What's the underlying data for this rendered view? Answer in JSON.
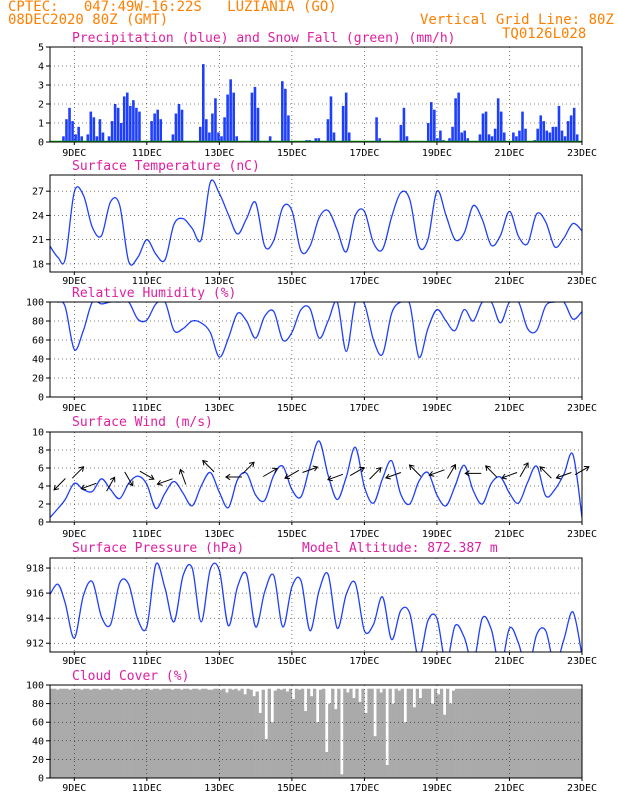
{
  "header": {
    "line1": "CPTEC:   047:49W-16:22S   LUZIANIA (GO)",
    "line2": "08DEC2020 80Z (GMT)",
    "grid_note": "Vertical Grid Line: 80Z",
    "code": "TQ0126L028"
  },
  "x_labels": [
    "9DEC",
    "11DEC",
    "13DEC",
    "15DEC",
    "17DEC",
    "19DEC",
    "21DEC",
    "23DEC"
  ],
  "colors": {
    "header": "#ff7f00",
    "title": "#e01fa0",
    "series": "#1f3fff",
    "snow": "#00aa00",
    "cloud": "#aaaaaa",
    "frame": "#000000"
  },
  "chart_data": [
    {
      "type": "bar",
      "title": "Precipitation (blue) and Snow Fall (green) (mm/h)",
      "ylim": [
        0,
        5
      ],
      "yticks": [
        0,
        1,
        2,
        3,
        4,
        5
      ],
      "x_start": 8.33,
      "x_end": 23.0,
      "values": [
        0,
        0,
        0,
        0,
        0.3,
        1.2,
        1.8,
        1.1,
        0.4,
        0.8,
        0.3,
        0,
        0.4,
        1.6,
        1.3,
        0.3,
        1.2,
        0.5,
        0,
        0.3,
        1.1,
        2.0,
        1.8,
        1.0,
        2.4,
        2.6,
        1.9,
        2.2,
        1.8,
        1.6,
        0,
        0,
        0,
        1.1,
        1.5,
        1.7,
        1.2,
        0,
        0,
        0,
        0.4,
        1.5,
        2.0,
        1.7,
        0,
        0,
        0,
        0,
        0,
        0.8,
        4.1,
        1.2,
        0.5,
        1.5,
        2.3,
        0.5,
        0.3,
        1.3,
        2.5,
        3.3,
        2.6,
        0.3,
        0,
        0,
        0,
        0,
        2.6,
        2.9,
        1.8,
        0,
        0,
        0,
        0.3,
        0,
        0,
        0,
        3.2,
        2.8,
        1.4,
        0,
        0,
        0,
        0,
        0,
        0.1,
        0.1,
        0,
        0.2,
        0.2,
        0,
        0,
        1.2,
        2.4,
        0.5,
        0,
        0,
        1.9,
        2.6,
        0.5,
        0,
        0,
        0,
        0,
        0,
        0,
        0,
        0,
        1.3,
        0.2,
        0,
        0,
        0,
        0,
        0,
        0,
        0.9,
        1.8,
        0.3,
        0,
        0,
        0,
        0,
        0,
        0,
        1.0,
        2.1,
        1.7,
        0.2,
        0.6,
        0.1,
        0,
        0.2,
        0.8,
        2.3,
        2.6,
        0.5,
        0.6,
        0.2,
        0,
        0,
        0,
        0.4,
        1.5,
        1.6,
        0.4,
        0.3,
        0.7,
        2.3,
        1.6,
        0.5,
        0,
        0,
        0.5,
        0.3,
        0.6,
        1.6,
        0.7,
        0,
        0,
        0.1,
        0.7,
        1.4,
        1.1,
        0.6,
        0.5,
        0.8,
        0.8,
        1.9,
        0.6,
        0.3,
        1.1,
        1.4,
        1.8,
        0.4,
        0
      ],
      "snow_values": [
        0
      ]
    },
    {
      "type": "line",
      "title": "Surface Temperature (nC)",
      "ylim": [
        17,
        29
      ],
      "yticks": [
        18,
        21,
        24,
        27
      ],
      "x": [
        8.33,
        8.55,
        8.75,
        9.0,
        9.25,
        9.5,
        9.75,
        10.0,
        10.25,
        10.5,
        10.75,
        11.0,
        11.25,
        11.5,
        11.75,
        12.0,
        12.25,
        12.5,
        12.75,
        13.0,
        13.25,
        13.5,
        13.75,
        14.0,
        14.25,
        14.5,
        14.75,
        15.0,
        15.25,
        15.5,
        15.75,
        16.0,
        16.25,
        16.5,
        16.75,
        17.0,
        17.25,
        17.5,
        17.75,
        18.0,
        18.25,
        18.5,
        18.75,
        19.0,
        19.25,
        19.5,
        19.75,
        20.0,
        20.25,
        20.5,
        20.75,
        21.0,
        21.25,
        21.5,
        21.75,
        22.0,
        22.25,
        22.5,
        22.75,
        23.0
      ],
      "y": [
        20.2,
        18.8,
        18.6,
        26.9,
        26.5,
        22.5,
        21.5,
        25.7,
        25.3,
        18.3,
        18.8,
        21.0,
        19.2,
        18.5,
        22.9,
        23.6,
        22.4,
        21.0,
        28.1,
        26.7,
        24.1,
        21.7,
        23.6,
        25.6,
        20.2,
        20.9,
        25.0,
        24.6,
        19.6,
        20.2,
        23.7,
        24.6,
        22.2,
        19.5,
        24.0,
        24.5,
        20.6,
        19.8,
        23.8,
        26.8,
        26.0,
        20.2,
        21.0,
        27.0,
        24.0,
        21.0,
        21.8,
        25.2,
        23.5,
        20.3,
        21.5,
        24.5,
        21.4,
        20.5,
        24.2,
        23.2,
        20.1,
        21.2,
        23.0,
        22.1
      ]
    },
    {
      "type": "line",
      "title": "Relative Humidity (%)",
      "ylim": [
        0,
        100
      ],
      "yticks": [
        0,
        20,
        40,
        60,
        80,
        100
      ],
      "x": [
        8.33,
        8.55,
        8.75,
        9.0,
        9.25,
        9.5,
        9.75,
        10.0,
        10.25,
        10.5,
        10.75,
        11.0,
        11.25,
        11.5,
        11.75,
        12.0,
        12.25,
        12.5,
        12.75,
        13.0,
        13.25,
        13.5,
        13.75,
        14.0,
        14.25,
        14.5,
        14.75,
        15.0,
        15.25,
        15.5,
        15.75,
        16.0,
        16.25,
        16.5,
        16.75,
        17.0,
        17.25,
        17.5,
        17.75,
        18.0,
        18.25,
        18.5,
        18.75,
        19.0,
        19.25,
        19.5,
        19.75,
        20.0,
        20.25,
        20.5,
        20.75,
        21.0,
        21.25,
        21.5,
        21.75,
        22.0,
        22.25,
        22.5,
        22.75,
        23.0
      ],
      "y": [
        100,
        100,
        95,
        50,
        70,
        100,
        98,
        100,
        100,
        100,
        82,
        81,
        98,
        100,
        70,
        72,
        80,
        78,
        68,
        42,
        62,
        88,
        80,
        62,
        85,
        90,
        60,
        68,
        92,
        93,
        62,
        80,
        100,
        48,
        100,
        98,
        60,
        45,
        88,
        100,
        98,
        42,
        72,
        92,
        80,
        70,
        92,
        80,
        100,
        100,
        78,
        100,
        100,
        72,
        70,
        96,
        100,
        100,
        82,
        90
      ]
    },
    {
      "type": "line",
      "title": "Surface Wind (m/s)",
      "ylim": [
        0,
        10
      ],
      "yticks": [
        0,
        2,
        4,
        6,
        8,
        10
      ],
      "x": [
        8.33,
        8.55,
        8.75,
        9.0,
        9.25,
        9.5,
        9.75,
        10.0,
        10.25,
        10.5,
        10.75,
        11.0,
        11.25,
        11.5,
        11.75,
        12.0,
        12.25,
        12.5,
        12.75,
        13.0,
        13.25,
        13.5,
        13.75,
        14.0,
        14.25,
        14.5,
        14.75,
        15.0,
        15.25,
        15.5,
        15.75,
        16.0,
        16.25,
        16.5,
        16.75,
        17.0,
        17.25,
        17.5,
        17.75,
        18.0,
        18.25,
        18.5,
        18.75,
        19.0,
        19.25,
        19.5,
        19.75,
        20.0,
        20.25,
        20.5,
        20.75,
        21.0,
        21.25,
        21.5,
        21.75,
        22.0,
        22.25,
        22.5,
        22.75,
        23.0
      ],
      "y": [
        0.5,
        1.5,
        2.5,
        4.3,
        3.6,
        3.4,
        4.8,
        3.6,
        2.6,
        4.3,
        5.1,
        4.2,
        1.5,
        3.2,
        4.5,
        3.2,
        1.8,
        4.0,
        5.5,
        3.3,
        1.6,
        4.7,
        5.4,
        3.0,
        2.4,
        5.2,
        6.2,
        3.6,
        2.8,
        6.2,
        9.0,
        5.2,
        2.5,
        5.0,
        8.3,
        3.9,
        2.1,
        4.8,
        6.8,
        3.1,
        2.0,
        4.5,
        5.5,
        3.0,
        1.8,
        4.0,
        6.3,
        3.5,
        2.0,
        4.3,
        5.0,
        3.2,
        2.1,
        4.4,
        6.2,
        2.9,
        3.6,
        5.3,
        7.5,
        0.5
      ],
      "arrows": [
        {
          "x": 8.6,
          "y": 4.2,
          "dir": 225
        },
        {
          "x": 9.1,
          "y": 5.5,
          "dir": 45
        },
        {
          "x": 9.4,
          "y": 4.0,
          "dir": 200
        },
        {
          "x": 10.0,
          "y": 4.2,
          "dir": 60
        },
        {
          "x": 10.5,
          "y": 4.8,
          "dir": 300
        },
        {
          "x": 11.0,
          "y": 5.2,
          "dir": 330
        },
        {
          "x": 11.5,
          "y": 4.5,
          "dir": 200
        },
        {
          "x": 12.0,
          "y": 5.0,
          "dir": 110
        },
        {
          "x": 12.7,
          "y": 6.2,
          "dir": 135
        },
        {
          "x": 13.4,
          "y": 5.0,
          "dir": 180
        },
        {
          "x": 13.8,
          "y": 6.0,
          "dir": 45
        },
        {
          "x": 14.4,
          "y": 5.5,
          "dir": 30
        },
        {
          "x": 15.0,
          "y": 5.3,
          "dir": 210
        },
        {
          "x": 15.5,
          "y": 5.8,
          "dir": 20
        },
        {
          "x": 16.2,
          "y": 5.0,
          "dir": 200
        },
        {
          "x": 16.8,
          "y": 5.6,
          "dir": 30
        },
        {
          "x": 17.3,
          "y": 5.4,
          "dir": 45
        },
        {
          "x": 17.8,
          "y": 5.2,
          "dir": 200
        },
        {
          "x": 18.4,
          "y": 5.7,
          "dir": 135
        },
        {
          "x": 19.0,
          "y": 5.5,
          "dir": 200
        },
        {
          "x": 19.4,
          "y": 5.6,
          "dir": 60
        },
        {
          "x": 20.0,
          "y": 5.4,
          "dir": 180
        },
        {
          "x": 20.5,
          "y": 5.6,
          "dir": 135
        },
        {
          "x": 21.0,
          "y": 5.2,
          "dir": 200
        },
        {
          "x": 21.4,
          "y": 5.8,
          "dir": 60
        },
        {
          "x": 22.0,
          "y": 5.5,
          "dir": 135
        },
        {
          "x": 22.5,
          "y": 5.2,
          "dir": 200
        },
        {
          "x": 23.0,
          "y": 5.7,
          "dir": 30
        }
      ]
    },
    {
      "type": "line",
      "title": "Surface Pressure (hPa)",
      "subtitle": "Model Altitude: 872.387 m",
      "ylim": [
        911.3,
        918.8
      ],
      "yticks": [
        912,
        914,
        916,
        918
      ],
      "x": [
        8.33,
        8.55,
        8.75,
        9.0,
        9.25,
        9.5,
        9.75,
        10.0,
        10.25,
        10.5,
        10.75,
        11.0,
        11.25,
        11.5,
        11.75,
        12.0,
        12.25,
        12.5,
        12.75,
        13.0,
        13.25,
        13.5,
        13.75,
        14.0,
        14.25,
        14.5,
        14.75,
        15.0,
        15.25,
        15.5,
        15.75,
        16.0,
        16.25,
        16.5,
        16.75,
        17.0,
        17.25,
        17.5,
        17.75,
        18.0,
        18.25,
        18.5,
        18.75,
        19.0,
        19.25,
        19.5,
        19.75,
        20.0,
        20.25,
        20.5,
        20.75,
        21.0,
        21.25,
        21.5,
        21.75,
        22.0,
        22.25,
        22.5,
        22.75,
        23.0
      ],
      "y": [
        915.9,
        916.7,
        915.2,
        912.4,
        915.8,
        916.9,
        914.1,
        913.5,
        916.8,
        916.7,
        913.9,
        913.3,
        918.3,
        916.4,
        913.7,
        917.4,
        918.0,
        913.7,
        917.9,
        917.8,
        913.4,
        916.5,
        917.5,
        913.3,
        916.1,
        917.4,
        913.3,
        916.5,
        917.0,
        913.0,
        916.2,
        917.5,
        913.2,
        915.9,
        916.8,
        913.0,
        913.5,
        915.7,
        912.3,
        914.6,
        914.4,
        910.8,
        913.8,
        914.0,
        910.4,
        913.4,
        912.5,
        910.4,
        914.0,
        913.1,
        910.0,
        913.2,
        912.0,
        909.7,
        912.7,
        913.0,
        910.2,
        912.3,
        914.5,
        911.0
      ]
    },
    {
      "type": "area",
      "title": "Cloud Cover (%)",
      "ylim": [
        0,
        100
      ],
      "yticks": [
        0,
        20,
        40,
        60,
        80,
        100
      ],
      "x_start": 8.33,
      "x_end": 23.0,
      "values": [
        96,
        96,
        95,
        96,
        96,
        96,
        95,
        96,
        96,
        96,
        95,
        96,
        96,
        95,
        96,
        96,
        95,
        96,
        96,
        96,
        95,
        96,
        96,
        95,
        96,
        96,
        96,
        95,
        96,
        95,
        96,
        96,
        96,
        95,
        96,
        96,
        95,
        96,
        96,
        96,
        95,
        96,
        96,
        95,
        96,
        96,
        95,
        96,
        96,
        95,
        96,
        96,
        95,
        95,
        96,
        96,
        95,
        96,
        92,
        96,
        95,
        96,
        94,
        96,
        90,
        96,
        95,
        88,
        93,
        70,
        95,
        42,
        96,
        60,
        94,
        96,
        95,
        96,
        93,
        96,
        85,
        96,
        95,
        96,
        72,
        96,
        88,
        96,
        60,
        95,
        96,
        28,
        80,
        96,
        74,
        96,
        4,
        96,
        92,
        96,
        86,
        96,
        82,
        96,
        70,
        96,
        96,
        45,
        96,
        92,
        96,
        14,
        96,
        80,
        96,
        94,
        96,
        60,
        96,
        96,
        76,
        96,
        86,
        96,
        96,
        96,
        80,
        96,
        90,
        96,
        68,
        96,
        80,
        94,
        96,
        96,
        96,
        96,
        96,
        96,
        96,
        96,
        96,
        96,
        96,
        96,
        96,
        96,
        96,
        96,
        96,
        96,
        96,
        96,
        96,
        96,
        96,
        96,
        96,
        96,
        96,
        96,
        96,
        96,
        96,
        96,
        96,
        96,
        96,
        96,
        96,
        96,
        96,
        96,
        96,
        96
      ]
    }
  ]
}
